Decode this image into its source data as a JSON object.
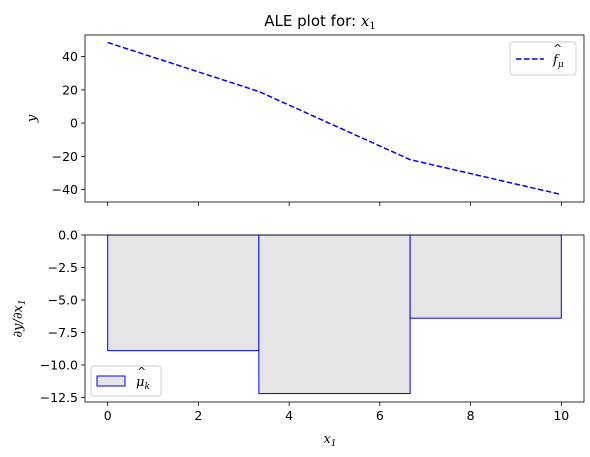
{
  "chart_data": [
    {
      "type": "line",
      "title": "ALE plot for: x₁",
      "xlabel": "",
      "ylabel": "y",
      "xlim": [
        -0.5,
        10.5
      ],
      "ylim": [
        -47.5,
        53
      ],
      "xticks": [
        0,
        2,
        4,
        6,
        8,
        10
      ],
      "yticks": [
        40,
        20,
        0,
        -20,
        -40
      ],
      "ytick_labels": [
        "40",
        "20",
        "0",
        "−20",
        "−40"
      ],
      "legend": {
        "position": "top-right",
        "label": "f̂μ"
      },
      "series": [
        {
          "name": "f̂μ",
          "color": "#0000ff",
          "style": "dashed",
          "x": [
            0,
            3.333,
            6.667,
            10
          ],
          "y": [
            48.5,
            19,
            -22,
            -43
          ]
        }
      ]
    },
    {
      "type": "bar",
      "title": "",
      "xlabel": "x₁",
      "ylabel": "∂y/∂x₁",
      "xlim": [
        -0.5,
        10.5
      ],
      "ylim": [
        -12.85,
        0
      ],
      "xticks": [
        0,
        2,
        4,
        6,
        8,
        10
      ],
      "xtick_labels": [
        "0",
        "2",
        "4",
        "6",
        "8",
        "10"
      ],
      "yticks": [
        0.0,
        -2.5,
        -5.0,
        -7.5,
        -10.0,
        -12.5
      ],
      "ytick_labels": [
        "0.0",
        "−2.5",
        "−5.0",
        "−7.5",
        "−10.0",
        "−12.5"
      ],
      "legend": {
        "position": "bottom-left",
        "label": "μ̂k"
      },
      "bars": [
        {
          "x0": 0,
          "x1": 3.333,
          "value": -8.9
        },
        {
          "x0": 3.333,
          "x1": 6.667,
          "value": -12.2
        },
        {
          "x0": 6.667,
          "x1": 10,
          "value": -6.4
        }
      ],
      "fill_color": "#e5e5e5",
      "edge_color": "#0000ff"
    }
  ]
}
